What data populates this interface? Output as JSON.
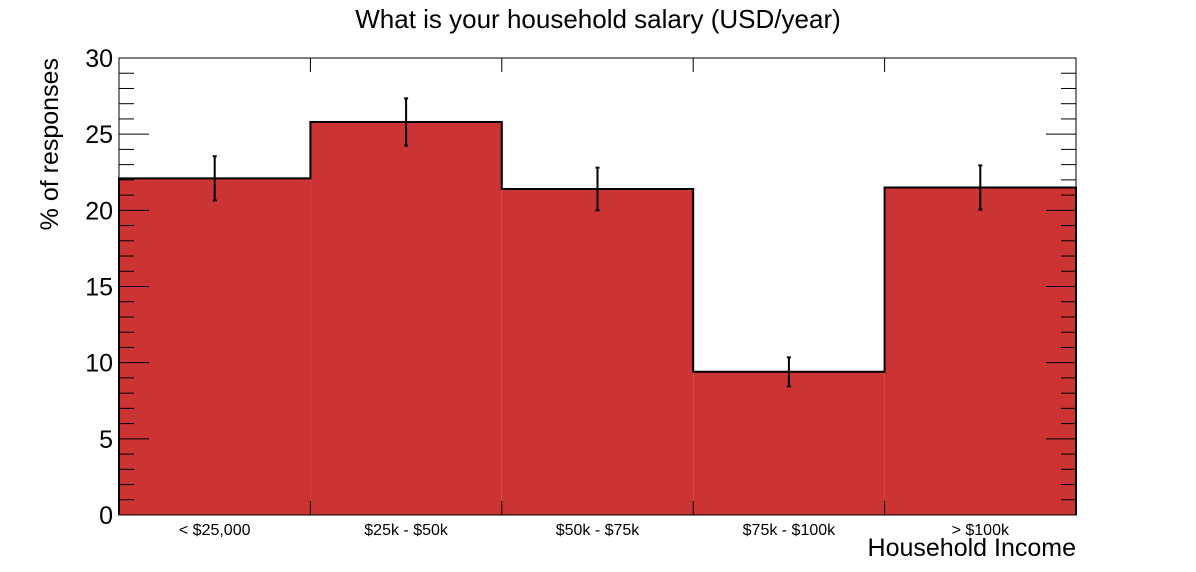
{
  "chart_data": {
    "type": "bar",
    "title": "What is your household salary (USD/year)",
    "xlabel": "Household Income",
    "ylabel": "% of responses",
    "categories": [
      "< $25,000",
      "$25k - $50k",
      "$50k - $75k",
      "$75k - $100k",
      "> $100k"
    ],
    "values": [
      22.1,
      25.8,
      21.4,
      9.4,
      21.5
    ],
    "errors": [
      1.45,
      1.55,
      1.4,
      0.95,
      1.45
    ],
    "ylim": [
      0,
      30
    ],
    "yticks": [
      "0",
      "5",
      "10",
      "15",
      "20",
      "25",
      "30"
    ],
    "grid": false,
    "bar_color": "#cc3333",
    "legend": "none"
  }
}
